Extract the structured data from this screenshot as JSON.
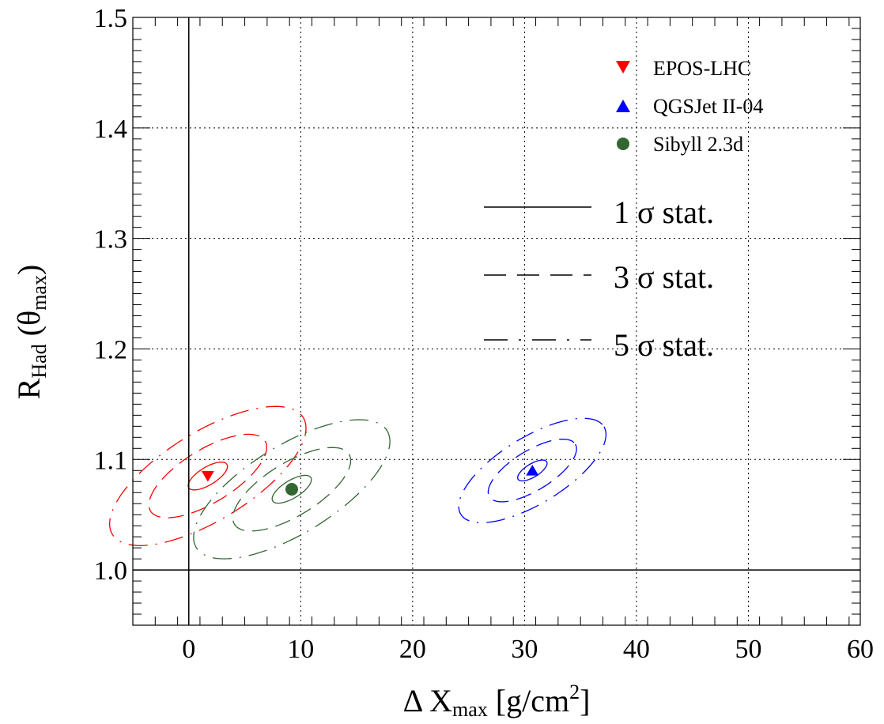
{
  "chart_data": {
    "type": "scatter",
    "title": "",
    "xlabel": {
      "main": "Δ X",
      "sub": "max",
      "rest": " [g/cm",
      "sup": "2",
      "end": "]"
    },
    "ylabel": {
      "main": "R",
      "sub": "Had",
      "mid": " (θ",
      "sub2": "max",
      "end": ")"
    },
    "xlim": [
      -5,
      60
    ],
    "ylim": [
      0.95,
      1.5
    ],
    "xticks": [
      0,
      10,
      20,
      30,
      40,
      50,
      60
    ],
    "xtick_labels": [
      "0",
      "10",
      "20",
      "30",
      "40",
      "50",
      "60"
    ],
    "yticks": [
      1.0,
      1.1,
      1.2,
      1.3,
      1.4,
      1.5
    ],
    "ytick_labels": [
      "1.0",
      "1.1",
      "1.2",
      "1.3",
      "1.4",
      "1.5"
    ],
    "grid": true,
    "reference_lines": {
      "x": 0,
      "y": 1.0
    },
    "series": [
      {
        "name": "EPOS-LHC",
        "color": "#ff0000",
        "marker": "triangle-down",
        "x": 1.7,
        "y": 1.085,
        "contours": [
          {
            "level": 1,
            "a": 2.0,
            "b": 0.008,
            "angle": -0.55
          },
          {
            "level": 3,
            "a": 6.0,
            "b": 0.024,
            "angle": -0.55
          },
          {
            "level": 5,
            "a": 10.0,
            "b": 0.04,
            "angle": -0.55
          }
        ]
      },
      {
        "name": "QGSJet II-04",
        "color": "#0000ff",
        "marker": "triangle-up",
        "x": 30.7,
        "y": 1.09,
        "contours": [
          {
            "level": 1,
            "a": 1.5,
            "b": 0.006,
            "angle": -0.55
          },
          {
            "level": 3,
            "a": 4.5,
            "b": 0.018,
            "angle": -0.55
          },
          {
            "level": 5,
            "a": 7.5,
            "b": 0.03,
            "angle": -0.55
          }
        ]
      },
      {
        "name": "Sibyll 2.3d",
        "color": "#336633",
        "marker": "circle",
        "x": 9.2,
        "y": 1.073,
        "contours": [
          {
            "level": 1,
            "a": 2.0,
            "b": 0.008,
            "angle": -0.55
          },
          {
            "level": 3,
            "a": 6.0,
            "b": 0.024,
            "angle": -0.55
          },
          {
            "level": 5,
            "a": 10.0,
            "b": 0.04,
            "angle": -0.55
          }
        ]
      }
    ],
    "legend_markers": {
      "position": "top-right",
      "entries": [
        "EPOS-LHC",
        "QGSJet II-04",
        "Sibyll 2.3d"
      ]
    },
    "legend_lines": {
      "position": "right",
      "entries": [
        {
          "label": "1 σ stat.",
          "style": "solid"
        },
        {
          "label": "3 σ stat.",
          "style": "dashed"
        },
        {
          "label": "5 σ stat.",
          "style": "dashdot"
        }
      ]
    }
  }
}
